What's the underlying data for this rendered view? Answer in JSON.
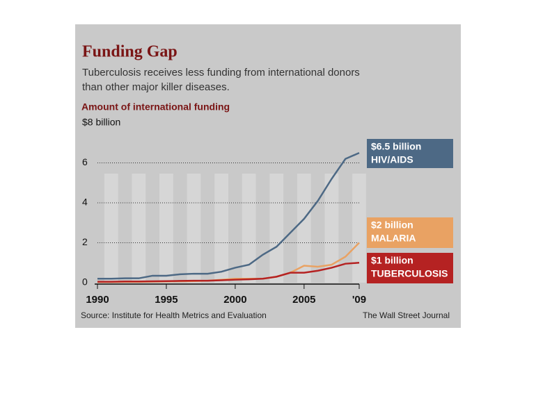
{
  "chart_data": {
    "type": "line",
    "title": "Funding Gap",
    "subtitle": [
      "Tuberculosis receives less funding from international donors",
      "than other major killer diseases."
    ],
    "y_axis_label": "Amount of international funding",
    "x": [
      1990,
      1991,
      1992,
      1993,
      1994,
      1995,
      1996,
      1997,
      1998,
      1999,
      2000,
      2001,
      2002,
      2003,
      2004,
      2005,
      2006,
      2007,
      2008,
      2009
    ],
    "series": [
      {
        "name": "HIV/AIDS",
        "end_label": "$6.5 billion",
        "color": "#4d6985",
        "values": [
          0.2,
          0.2,
          0.22,
          0.22,
          0.35,
          0.35,
          0.42,
          0.45,
          0.45,
          0.55,
          0.75,
          0.9,
          1.4,
          1.8,
          2.5,
          3.2,
          4.1,
          5.2,
          6.2,
          6.5
        ]
      },
      {
        "name": "MALARIA",
        "end_label": "$2 billion",
        "color": "#e9a263",
        "values": [
          0.03,
          0.03,
          0.04,
          0.04,
          0.05,
          0.06,
          0.07,
          0.08,
          0.1,
          0.15,
          0.2,
          0.2,
          0.2,
          0.3,
          0.5,
          0.85,
          0.8,
          0.9,
          1.3,
          2.0
        ]
      },
      {
        "name": "TUBERCULOSIS",
        "end_label": "$1 billion",
        "color": "#b52222",
        "values": [
          0.05,
          0.05,
          0.06,
          0.06,
          0.07,
          0.08,
          0.09,
          0.1,
          0.1,
          0.12,
          0.15,
          0.17,
          0.2,
          0.3,
          0.5,
          0.5,
          0.6,
          0.75,
          0.95,
          1.0
        ]
      }
    ],
    "xlim": [
      1990,
      2009
    ],
    "xticks": [
      1990,
      1995,
      2000,
      2005,
      {
        "value": 2009,
        "label": "'09"
      }
    ],
    "ylim": [
      0,
      8
    ],
    "yticks": [
      0,
      2,
      4,
      6,
      {
        "value": 8,
        "label": "$8 billion"
      }
    ],
    "grid": true,
    "source": "Source: Institute for Health Metrics and Evaluation",
    "credit": "The Wall Street Journal"
  }
}
